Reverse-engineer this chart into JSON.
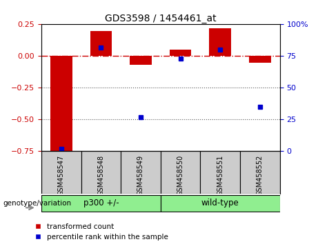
{
  "title": "GDS3598 / 1454461_at",
  "samples": [
    "GSM458547",
    "GSM458548",
    "GSM458549",
    "GSM458550",
    "GSM458551",
    "GSM458552"
  ],
  "red_bars": [
    -0.75,
    0.2,
    -0.07,
    0.05,
    0.22,
    -0.05
  ],
  "blue_dots": [
    2,
    82,
    27,
    73,
    80,
    35
  ],
  "ylim_left": [
    -0.75,
    0.25
  ],
  "ylim_right": [
    0,
    100
  ],
  "yticks_left": [
    0.25,
    0.0,
    -0.25,
    -0.5,
    -0.75
  ],
  "yticks_right": [
    100,
    75,
    50,
    25,
    0
  ],
  "red_color": "#cc0000",
  "blue_color": "#0000cc",
  "hline_color": "#cc0000",
  "dotted_line_color": "#555555",
  "groups": [
    {
      "label": "p300 +/-",
      "start": 0,
      "end": 3
    },
    {
      "label": "wild-type",
      "start": 3,
      "end": 6
    }
  ],
  "group_row_label": "genotype/variation",
  "legend_red": "transformed count",
  "legend_blue": "percentile rank within the sample",
  "bar_width": 0.55,
  "background_color": "#ffffff",
  "plot_bg": "#ffffff",
  "xlabel_area_bg": "#cccccc",
  "group_bg": "#90EE90",
  "title_fontsize": 10
}
